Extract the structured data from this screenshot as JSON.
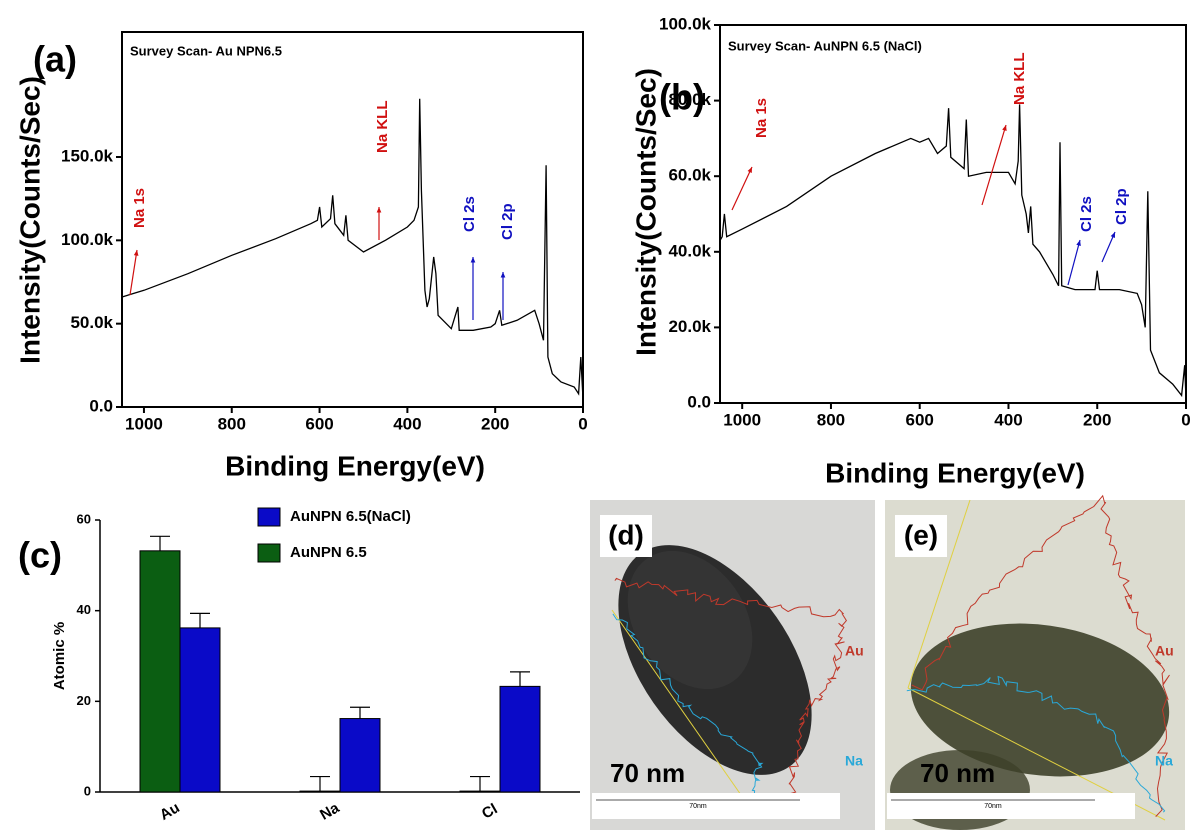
{
  "chart_data": [
    {
      "type": "line",
      "panel": "(a)",
      "title": "Survey Scan- Au NPN6.5",
      "xlabel": "Binding Energy(eV)",
      "ylabel": "Intensity(Counts/Sec)",
      "xlim": [
        1050,
        0
      ],
      "xticks": [
        1000,
        800,
        600,
        400,
        200,
        0
      ],
      "ylim": [
        0,
        225000
      ],
      "yticks": [
        {
          "value": 0,
          "label": "0.0"
        },
        {
          "value": 50000,
          "label": "50.0k"
        },
        {
          "value": 100000,
          "label": "100.0k"
        },
        {
          "value": 150000,
          "label": "150.0k"
        }
      ],
      "color": "#000000",
      "x": [
        1050,
        1000,
        900,
        800,
        700,
        620,
        605,
        600,
        595,
        575,
        570,
        565,
        545,
        540,
        535,
        500,
        450,
        400,
        385,
        375,
        372,
        368,
        360,
        355,
        350,
        340,
        335,
        330,
        300,
        285,
        282,
        250,
        210,
        200,
        190,
        185,
        150,
        110,
        100,
        90,
        84,
        80,
        70,
        50,
        20,
        10,
        5,
        0
      ],
      "values": [
        66000,
        70000,
        80000,
        91000,
        101000,
        110000,
        112000,
        120000,
        108000,
        113000,
        127000,
        110000,
        103000,
        115000,
        100000,
        93000,
        100000,
        108000,
        112000,
        120000,
        185000,
        130000,
        70000,
        60000,
        65000,
        90000,
        80000,
        55000,
        47000,
        60000,
        46000,
        46000,
        48000,
        50000,
        58000,
        49000,
        52000,
        58000,
        50000,
        40000,
        145000,
        30000,
        20000,
        15000,
        12000,
        8000,
        30000,
        5000
      ],
      "annotations": [
        {
          "text": "Na 1s",
          "color": "#d01010"
        },
        {
          "text": "Na KLL",
          "color": "#d01010"
        },
        {
          "text": "Cl 2s",
          "color": "#1010c0"
        },
        {
          "text": "Cl 2p",
          "color": "#1010c0"
        }
      ]
    },
    {
      "type": "line",
      "panel": "(b)",
      "title": "Survey Scan- AuNPN 6.5 (NaCl)",
      "xlabel": "Binding Energy(eV)",
      "ylabel": "Intensity(Counts/Sec)",
      "xlim": [
        1050,
        0
      ],
      "xticks": [
        1000,
        800,
        600,
        400,
        200,
        0
      ],
      "ylim": [
        0,
        100000
      ],
      "yticks": [
        {
          "value": 0,
          "label": "0.0"
        },
        {
          "value": 20000,
          "label": "20.0k"
        },
        {
          "value": 40000,
          "label": "40.0k"
        },
        {
          "value": 60000,
          "label": "60.0k"
        },
        {
          "value": 80000,
          "label": "80.0k"
        },
        {
          "value": 100000,
          "label": "100.0k"
        }
      ],
      "color": "#000000",
      "x": [
        1050,
        1045,
        1040,
        1035,
        1000,
        900,
        800,
        700,
        620,
        600,
        580,
        560,
        540,
        535,
        530,
        500,
        495,
        490,
        450,
        400,
        385,
        378,
        375,
        370,
        360,
        355,
        350,
        345,
        330,
        300,
        287,
        284,
        280,
        250,
        205,
        200,
        195,
        150,
        110,
        100,
        92,
        86,
        80,
        60,
        30,
        10,
        3,
        0
      ],
      "values": [
        43000,
        44000,
        50000,
        44000,
        46000,
        52000,
        60000,
        66000,
        70000,
        69000,
        70000,
        66000,
        68000,
        78000,
        65000,
        62000,
        75000,
        60000,
        61000,
        61000,
        58000,
        64000,
        79000,
        55000,
        50000,
        45000,
        52000,
        42000,
        40000,
        34000,
        31000,
        69000,
        31000,
        30000,
        30000,
        35000,
        30000,
        30000,
        29000,
        26000,
        20000,
        56000,
        14000,
        8000,
        5000,
        2000,
        10000,
        1000
      ],
      "annotations": [
        {
          "text": "Na 1s",
          "color": "#d01010"
        },
        {
          "text": "Na KLL",
          "color": "#d01010"
        },
        {
          "text": "Cl 2s",
          "color": "#1010c0"
        },
        {
          "text": "Cl 2p",
          "color": "#1010c0"
        }
      ]
    },
    {
      "type": "bar",
      "panel": "(c)",
      "ylabel": "Atomic %",
      "categories": [
        "Au",
        "Na",
        "Cl"
      ],
      "ylim": [
        0,
        60
      ],
      "yticks": [
        0,
        20,
        40,
        60
      ],
      "series": [
        {
          "name": "AuNPN 6.5",
          "color": "#0b5e12",
          "values": [
            53.2,
            0.2,
            0.2
          ],
          "errors": [
            3.2,
            3.2,
            3.2
          ]
        },
        {
          "name": "AuNPN 6.5(NaCl)",
          "color": "#0a0ac8",
          "values": [
            36.2,
            16.2,
            23.3
          ],
          "errors": [
            3.2,
            2.5,
            3.2
          ]
        }
      ]
    }
  ],
  "images": [
    {
      "label": "(d)",
      "scale_text": "70 nm",
      "scale_bar_text": "70nm",
      "legend": [
        {
          "text": "Au",
          "color": "#c0392b"
        },
        {
          "text": "Na",
          "color": "#29a8d8"
        }
      ]
    },
    {
      "label": "(e)",
      "scale_text": "70 nm",
      "scale_bar_text": "70nm",
      "legend": [
        {
          "text": "Au",
          "color": "#c0392b"
        },
        {
          "text": "Na",
          "color": "#29a8d8"
        }
      ]
    }
  ]
}
